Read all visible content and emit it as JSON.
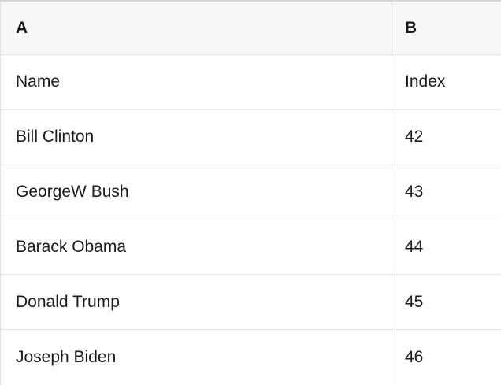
{
  "table": {
    "column_headers": [
      {
        "label": "A"
      },
      {
        "label": "B"
      }
    ],
    "rows": [
      {
        "name": "Name",
        "index": "Index"
      },
      {
        "name": "Bill Clinton",
        "index": "42"
      },
      {
        "name": "GeorgeW Bush",
        "index": "43"
      },
      {
        "name": "Barack Obama",
        "index": "44"
      },
      {
        "name": "Donald Trump",
        "index": "45"
      },
      {
        "name": "Joseph Biden",
        "index": "46"
      }
    ]
  },
  "colors": {
    "header_bg": "#f7f7f7",
    "row_bg": "#ffffff",
    "border": "#e2e2e2",
    "border_top": "#d6d6d6",
    "text": "#1a1a1a"
  }
}
